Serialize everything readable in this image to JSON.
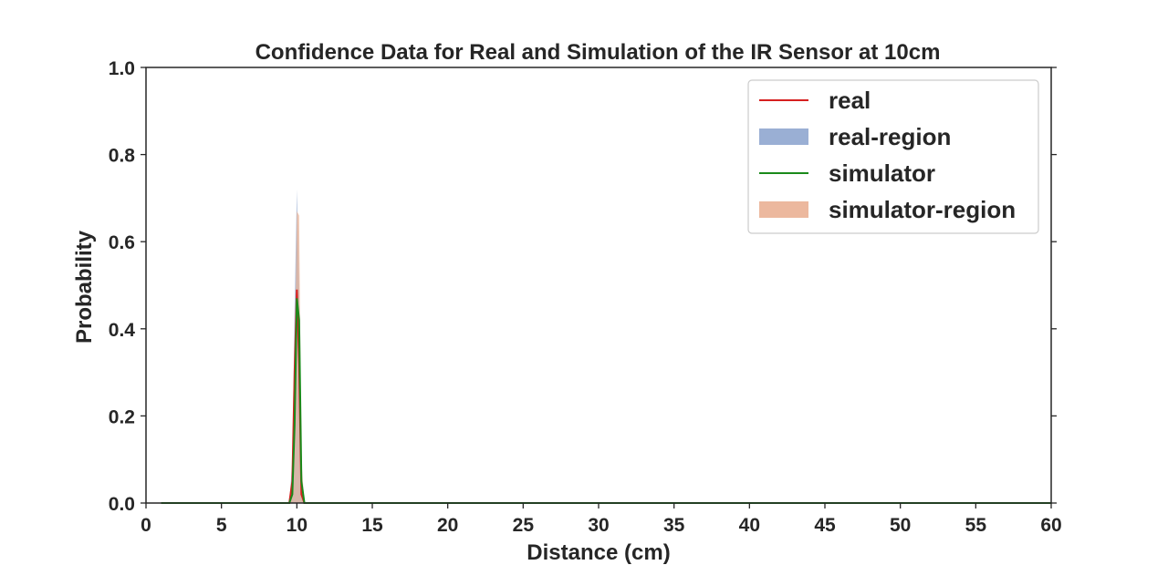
{
  "chart_data": {
    "type": "line",
    "title": "Confidence Data for Real and Simulation of the IR Sensor at 10cm",
    "xlabel": "Distance (cm)",
    "ylabel": "Probability",
    "xlim": [
      0,
      60
    ],
    "ylim": [
      0,
      1.0
    ],
    "xticks": [
      0,
      5,
      10,
      15,
      20,
      25,
      30,
      35,
      40,
      45,
      50,
      55,
      60
    ],
    "yticks": [
      "0.0",
      "0.2",
      "0.4",
      "0.6",
      "0.8",
      "1.0"
    ],
    "grid": false,
    "legend_position": "top-right",
    "x": [
      1,
      9.5,
      9.7,
      9.85,
      10.0,
      10.15,
      10.3,
      10.5,
      60
    ],
    "series": [
      {
        "name": "real",
        "kind": "line",
        "color": "#d62020",
        "values": [
          0,
          0,
          0.05,
          0.3,
          0.49,
          0.32,
          0.02,
          0,
          0
        ]
      },
      {
        "name": "real-region",
        "kind": "region",
        "color": "#8fa6cf",
        "lower": [
          0,
          0,
          0,
          0,
          0,
          0,
          0,
          0,
          0
        ],
        "upper": [
          0,
          0,
          0.1,
          0.45,
          0.72,
          0.5,
          0.04,
          0,
          0
        ]
      },
      {
        "name": "simulator",
        "kind": "line",
        "color": "#1a8a1a",
        "values": [
          0,
          0,
          0.02,
          0.18,
          0.47,
          0.42,
          0.05,
          0,
          0
        ]
      },
      {
        "name": "simulator-region",
        "kind": "region",
        "color": "#eab093",
        "lower": [
          0,
          0,
          0,
          0,
          0,
          0,
          0,
          0,
          0
        ],
        "upper": [
          0,
          0,
          0.03,
          0.3,
          0.67,
          0.66,
          0.1,
          0,
          0
        ]
      }
    ]
  }
}
